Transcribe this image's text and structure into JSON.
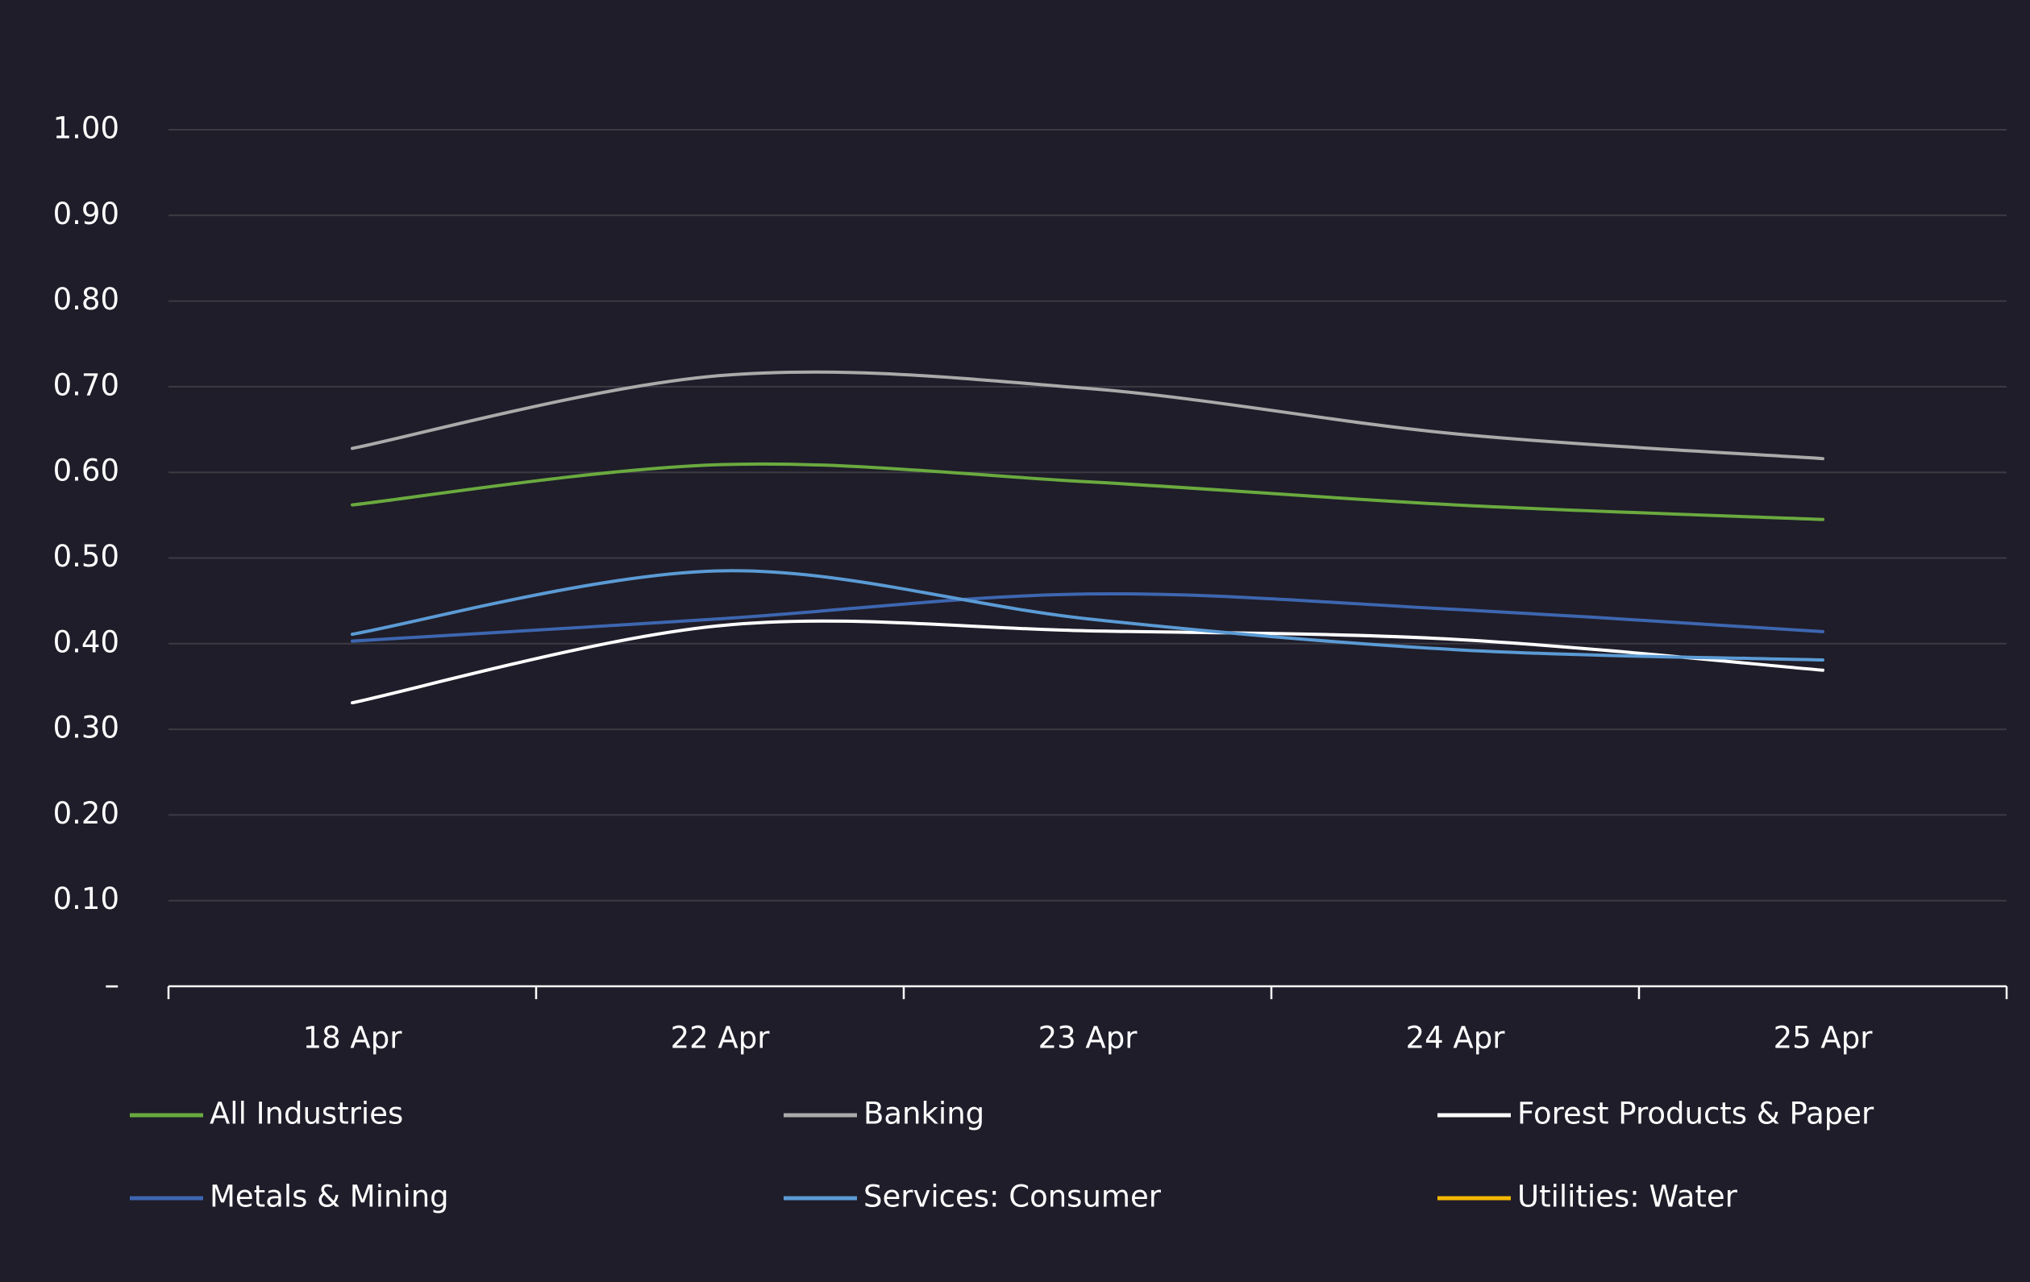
{
  "chart_data": {
    "type": "line",
    "categories": [
      "18 Apr",
      "22 Apr",
      "23 Apr",
      "24 Apr",
      "25 Apr"
    ],
    "series": [
      {
        "name": "All Industries",
        "color": "#6aaa3f",
        "values": [
          0.562,
          0.609,
          0.589,
          0.562,
          0.545
        ]
      },
      {
        "name": "Banking",
        "color": "#aaaaaa",
        "values": [
          0.628,
          0.713,
          0.698,
          0.645,
          0.616
        ]
      },
      {
        "name": "Forest Products & Paper",
        "color": "#ffffff",
        "values": [
          0.331,
          0.421,
          0.415,
          0.405,
          0.369
        ]
      },
      {
        "name": "Metals & Mining",
        "color": "#3d66b0",
        "values": [
          0.403,
          0.429,
          0.458,
          0.44,
          0.414
        ]
      },
      {
        "name": "Services: Consumer",
        "color": "#5b9bd5",
        "values": [
          0.411,
          0.485,
          0.429,
          0.393,
          0.381
        ]
      },
      {
        "name": "Utilities: Water",
        "color": "#f5b800",
        "values": [
          null,
          null,
          null,
          null,
          null
        ]
      }
    ],
    "ylim": [
      0,
      1
    ],
    "yticks": [
      {
        "value": 0,
        "label": "–"
      },
      {
        "value": 0.1,
        "label": "0.10"
      },
      {
        "value": 0.2,
        "label": "0.20"
      },
      {
        "value": 0.3,
        "label": "0.30"
      },
      {
        "value": 0.4,
        "label": "0.40"
      },
      {
        "value": 0.5,
        "label": "0.50"
      },
      {
        "value": 0.6,
        "label": "0.60"
      },
      {
        "value": 0.7,
        "label": "0.70"
      },
      {
        "value": 0.8,
        "label": "0.80"
      },
      {
        "value": 0.9,
        "label": "0.90"
      },
      {
        "value": 1,
        "label": "1.00"
      }
    ],
    "grid": true
  }
}
